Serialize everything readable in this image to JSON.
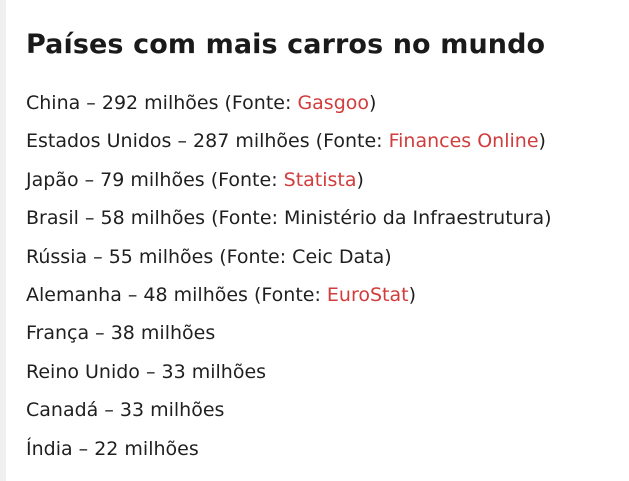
{
  "heading": "Países com mais carros no mundo",
  "colors": {
    "text": "#1f1f1f",
    "link": "#d13c3c",
    "background": "#ffffff"
  },
  "items": [
    {
      "prefix": "China – 292 milhões (Fonte: ",
      "link": "Gasgoo",
      "suffix": ")"
    },
    {
      "prefix": "Estados Unidos – 287 milhões (Fonte: ",
      "link": "Finances Online",
      "suffix": ")"
    },
    {
      "prefix": "Japão – 79 milhões (Fonte: ",
      "link": "Statista",
      "suffix": ")"
    },
    {
      "prefix": "Brasil – 58 milhões (Fonte: Ministério da Infraestrutura)"
    },
    {
      "prefix": "Rússia – 55 milhões (Fonte: Ceic Data)"
    },
    {
      "prefix": "Alemanha – 48 milhões (Fonte: ",
      "link": "EuroStat",
      "suffix": ")"
    },
    {
      "prefix": "França – 38 milhões"
    },
    {
      "prefix": "Reino Unido – 33 milhões"
    },
    {
      "prefix": "Canadá – 33 milhões"
    },
    {
      "prefix": "Índia – 22 milhões"
    }
  ]
}
